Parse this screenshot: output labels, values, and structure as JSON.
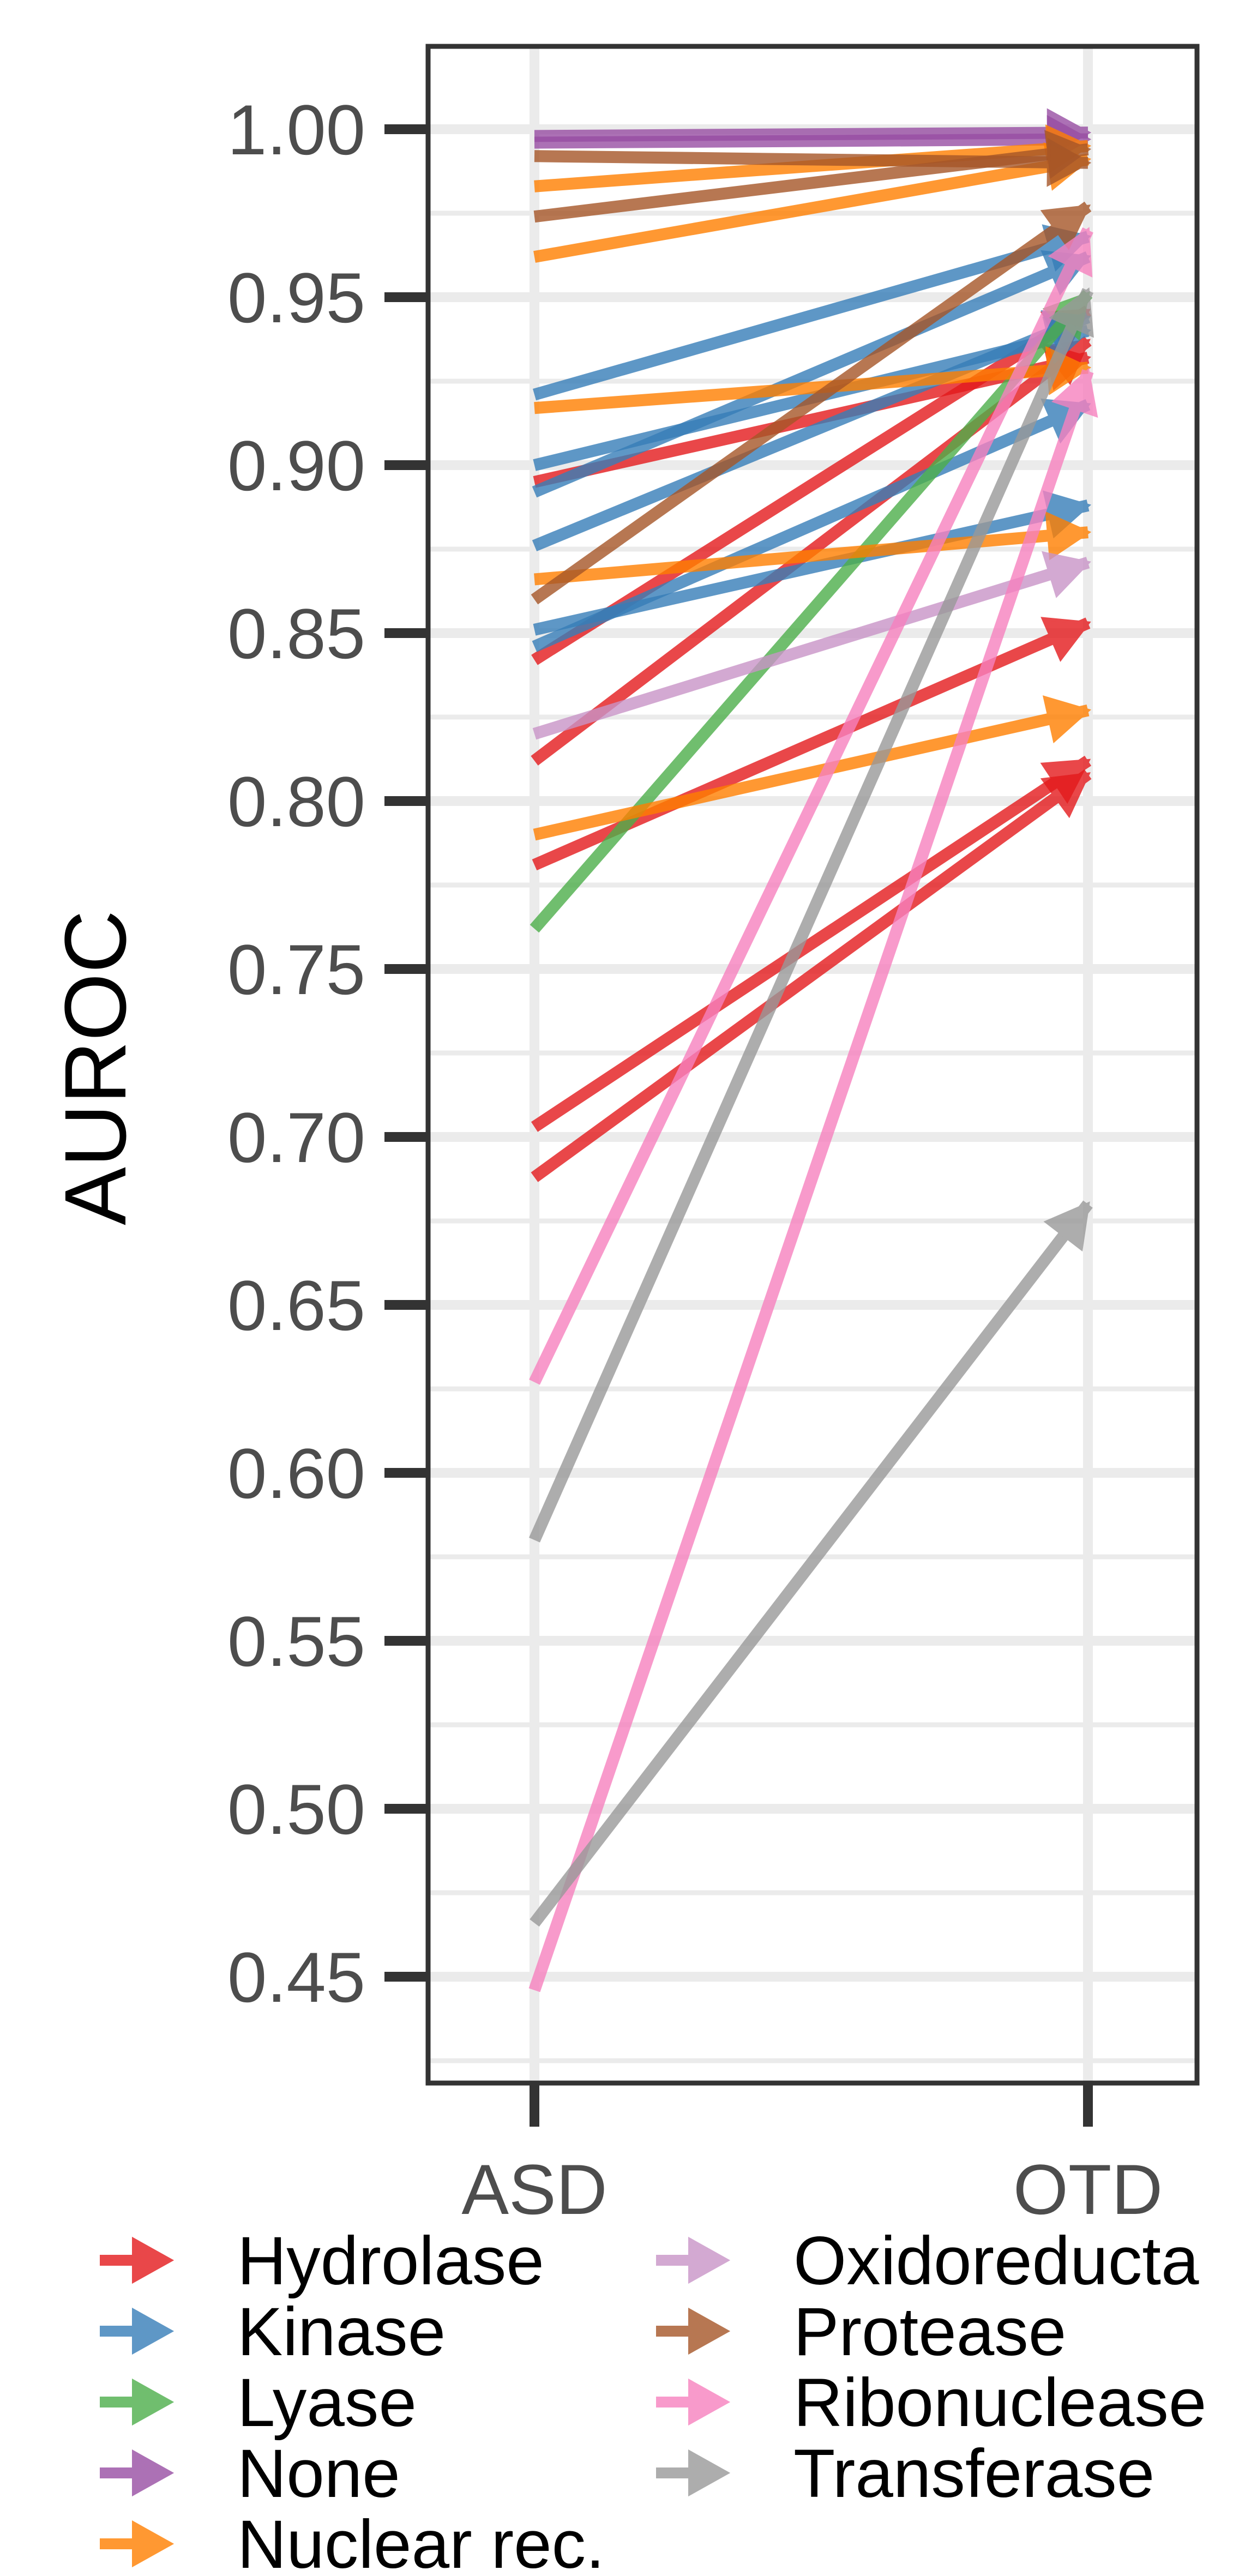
{
  "chart_data": {
    "type": "line",
    "x": [
      "ASD",
      "OTD"
    ],
    "ylabel": "AUROC",
    "xlabel": "",
    "ylim": [
      0.42,
      1.025
    ],
    "yticks": [
      "0.45",
      "0.50",
      "0.55",
      "0.60",
      "0.65",
      "0.70",
      "0.75",
      "0.80",
      "0.85",
      "0.90",
      "0.95",
      "1.00"
    ],
    "grid": true,
    "arrows": true,
    "legend": {
      "placement": "bottom",
      "columns": 2,
      "entries": [
        {
          "name": "Hydrolase",
          "color": "#e41a1c"
        },
        {
          "name": "Kinase",
          "color": "#377eb8"
        },
        {
          "name": "Lyase",
          "color": "#4daf4a"
        },
        {
          "name": "None",
          "color": "#984ea3"
        },
        {
          "name": "Nuclear rec.",
          "color": "#ff7f00"
        },
        {
          "name": "Oxidoreducta",
          "color": "#c994c7"
        },
        {
          "name": "Protease",
          "color": "#a65628"
        },
        {
          "name": "Ribonuclease",
          "color": "#f781bf"
        },
        {
          "name": "Transferase",
          "color": "#999999"
        }
      ]
    },
    "series": [
      {
        "category": "Hydrolase",
        "values": [
          0.703,
          0.812
        ]
      },
      {
        "category": "Hydrolase",
        "values": [
          0.688,
          0.808
        ]
      },
      {
        "category": "Hydrolase",
        "values": [
          0.781,
          0.853
        ]
      },
      {
        "category": "Hydrolase",
        "values": [
          0.812,
          0.937
        ]
      },
      {
        "category": "Hydrolase",
        "values": [
          0.842,
          0.946
        ]
      },
      {
        "category": "Hydrolase",
        "values": [
          0.895,
          0.932
        ]
      },
      {
        "category": "Kinase",
        "values": [
          0.921,
          0.968
        ]
      },
      {
        "category": "Kinase",
        "values": [
          0.9,
          0.94
        ]
      },
      {
        "category": "Kinase",
        "values": [
          0.892,
          0.962
        ]
      },
      {
        "category": "Kinase",
        "values": [
          0.876,
          0.944
        ]
      },
      {
        "category": "Kinase",
        "values": [
          0.851,
          0.888
        ]
      },
      {
        "category": "Kinase",
        "values": [
          0.846,
          0.918
        ]
      },
      {
        "category": "Lyase",
        "values": [
          0.762,
          0.951
        ]
      },
      {
        "category": "None",
        "values": [
          0.998,
          0.999
        ]
      },
      {
        "category": "None",
        "values": [
          0.996,
          0.997
        ]
      },
      {
        "category": "Nuclear rec.",
        "values": [
          0.962,
          0.991
        ]
      },
      {
        "category": "Nuclear rec.",
        "values": [
          0.983,
          0.995
        ]
      },
      {
        "category": "Nuclear rec.",
        "values": [
          0.917,
          0.929
        ]
      },
      {
        "category": "Nuclear rec.",
        "values": [
          0.866,
          0.88
        ]
      },
      {
        "category": "Nuclear rec.",
        "values": [
          0.79,
          0.827
        ]
      },
      {
        "category": "Oxidoreducta",
        "values": [
          0.82,
          0.871
        ]
      },
      {
        "category": "Protease",
        "values": [
          0.974,
          0.994
        ]
      },
      {
        "category": "Protease",
        "values": [
          0.992,
          0.99
        ]
      },
      {
        "category": "Protease",
        "values": [
          0.86,
          0.977
        ]
      },
      {
        "category": "Ribonuclease",
        "values": [
          0.627,
          0.97
        ]
      },
      {
        "category": "Ribonuclease",
        "values": [
          0.446,
          0.928
        ]
      },
      {
        "category": "Transferase",
        "values": [
          0.58,
          0.952
        ]
      },
      {
        "category": "Transferase",
        "values": [
          0.466,
          0.68
        ]
      }
    ]
  }
}
